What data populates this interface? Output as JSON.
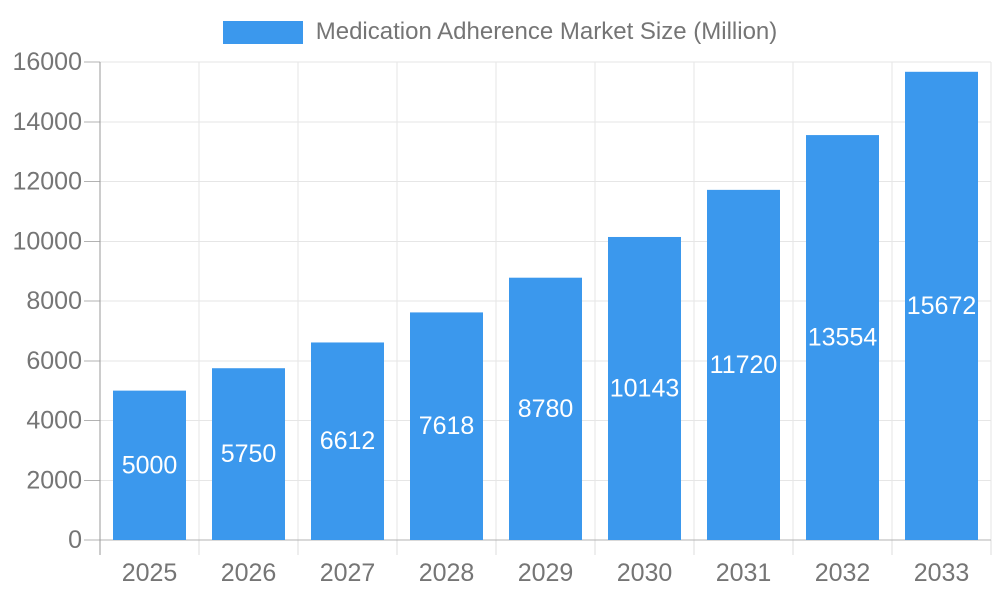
{
  "legend": {
    "label": "Medication Adherence Market Size (Million)"
  },
  "colors": {
    "bar": "#3b98ed",
    "bar_label_text": "#ffffff",
    "axis_text": "#757575",
    "grid_line": "#e6e6e6",
    "x_tick_line": "#dcdcdc",
    "y_axis_line": "#999999",
    "baseline": "#b3b3b3",
    "y_tick_line": "#b3b3b3",
    "background": "#ffffff",
    "legend_text": "#757575"
  },
  "chart_data": {
    "type": "bar",
    "title": "Medication Adherence Market Size (Million)",
    "categories": [
      "2025",
      "2026",
      "2027",
      "2028",
      "2029",
      "2030",
      "2031",
      "2032",
      "2033"
    ],
    "values": [
      5000,
      5750,
      6612,
      7618,
      8780,
      10143,
      11720,
      13554,
      15672
    ],
    "series_name": "Medication Adherence Market Size (Million)",
    "xlabel": "",
    "ylabel": "",
    "ylim": [
      0,
      16000
    ],
    "ytick_step": 2000,
    "ytick_labels": [
      "0",
      "2000",
      "4000",
      "6000",
      "8000",
      "10000",
      "12000",
      "14000",
      "16000"
    ],
    "grid": true,
    "legend_position": "top",
    "bar_label_position": "middle"
  }
}
